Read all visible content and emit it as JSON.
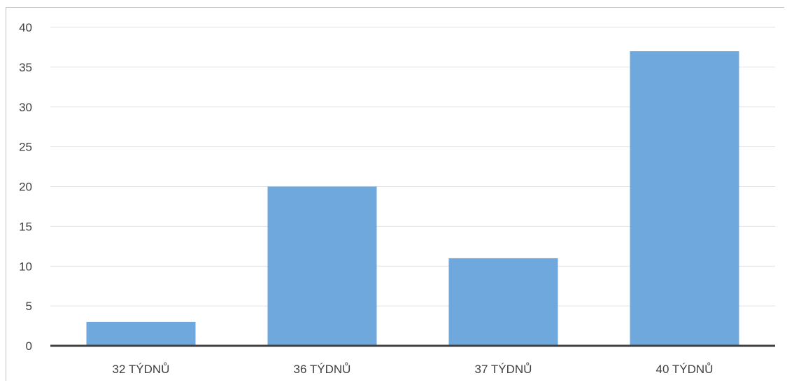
{
  "chart_data": {
    "type": "bar",
    "title": "",
    "xlabel": "",
    "ylabel": "",
    "categories": [
      "32 TÝDNŮ",
      "36 TÝDNŮ",
      "37 TÝDNŮ",
      "40 TÝDNŮ"
    ],
    "values": [
      3,
      20,
      11,
      37
    ],
    "ylim": [
      0,
      40
    ],
    "yticks": [
      "0",
      "5",
      "10",
      "15",
      "20",
      "25",
      "30",
      "35",
      "40"
    ],
    "grid": true,
    "legend": "none",
    "colors": {
      "bar": "#6fa8dc",
      "grid": "#e3e3e3",
      "axis": "#404040",
      "text": "#404040"
    }
  }
}
